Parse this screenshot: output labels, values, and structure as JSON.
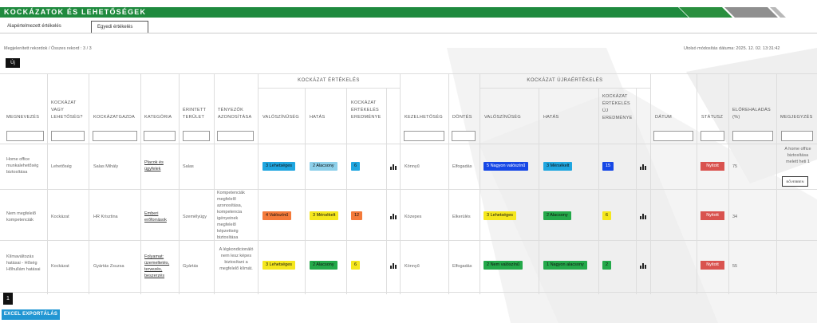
{
  "header": {
    "title": "KOCKÁZATOK ÉS LEHETŐSÉGEK"
  },
  "tabs": [
    {
      "label": "Alapértelmezett értékelés"
    },
    {
      "label": "Egyedi értékelés"
    }
  ],
  "records_info": "Megjelenített rekordok / Összes rekord : 3 / 3",
  "last_modified": "Utolsó módosítás dátuma: 2025. 12. 02. 13:31:42",
  "new_button": "Új",
  "groups": {
    "assessment": "KOCKÁZAT ÉRTÉKELÉS",
    "reassessment": "KOCKÁZAT ÚJRAÉRTÉKELÉS"
  },
  "columns": {
    "name": "MEGNEVEZÉS",
    "type": "KOCKÁZAT VAGY LEHETŐSÉG?",
    "owner": "KOCKÁZATGAZDA",
    "category": "KATEGÓRIA",
    "area": "ÉRINTETT TERÜLET",
    "factors": "TÉNYEZŐK AZONOSÍTÁSA",
    "probability": "VALÓSZÍNŰSÉG",
    "impact": "HATÁS",
    "result": "KOCKÁZAT ÉRTÉKELÉS EREDMÉNYE",
    "handling": "KEZELHETŐSÉG",
    "decision": "DÖNTÉS",
    "new_probability": "VALÓSZÍNŰSÉG",
    "new_impact": "HATÁS",
    "new_result": "KOCKÁZAT ÉRTÉKELÉS ÚJ EREDMÉNYE",
    "date": "DÁTUM",
    "status": "STÁTUSZ",
    "progress": "ELŐREHALADÁS (%)",
    "note": "MEGJEGYZÉS"
  },
  "rows": [
    {
      "name": "Home office munkalehetőség biztosítása",
      "type": "Lehetőség",
      "owner": "Salas Mihály",
      "category": "Placok és ügyfelek",
      "area": "Salas",
      "factors": "",
      "probability": "3 Lehetséges",
      "impact": "2 Alacsony",
      "result": "6",
      "handling": "Könnyű",
      "decision": "Elfogadás",
      "new_probability": "5 Nagyon valószínű",
      "new_impact": "3 Mérsékelt",
      "new_result": "15",
      "date": "",
      "status": "Nyitott",
      "progress": "75",
      "note": "A home office biztosítása melett heti 1",
      "note_more": "BŐVEBBEN"
    },
    {
      "name": "Nem megfelelő kompetenciák",
      "type": "Kockázat",
      "owner": "HR Krisztina",
      "category": "Emberi erőforrások",
      "area": "Személyügy",
      "factors": "Kompetenciák megfelelő azonosítása, kompetencia igényeinek megfelelő képzettség biztosítása",
      "probability": "4 Valószínű",
      "impact": "3 Mérsékelt",
      "result": "12",
      "handling": "Közepes",
      "decision": "Elkerülés",
      "new_probability": "3 Lehetséges",
      "new_impact": "2 Alacsony",
      "new_result": "6",
      "date": "",
      "status": "Nyitott",
      "progress": "34",
      "note": ""
    },
    {
      "name": "Klímaváltozás hatásai - Hőség Hőhullám hatásai",
      "type": "Kockázat",
      "owner": "Gyártás Zsuzsa",
      "category": "Folyamat: üzemeltetés, tervezés, beszerzés",
      "area": "Gyártás",
      "factors": "A légkondicionáló nem lesz képes biztosítani a megfelelő klímát.",
      "probability": "3 Lehetséges",
      "impact": "2 Alacsony",
      "result": "6",
      "handling": "Könnyű",
      "decision": "Elfogadás",
      "new_probability": "2 Nem valószínű",
      "new_impact": "1 Nagyon alacsony",
      "new_result": "2",
      "date": "",
      "status": "Nyitott",
      "progress": "55",
      "note": ""
    }
  ],
  "pagination": {
    "current": "1"
  },
  "excel_button": "EXCEL EXPORTÁLÁS",
  "colors": {
    "brand_green": "#1f8a3e",
    "status_open": "#d9534f",
    "excel_blue": "#2196d3"
  }
}
